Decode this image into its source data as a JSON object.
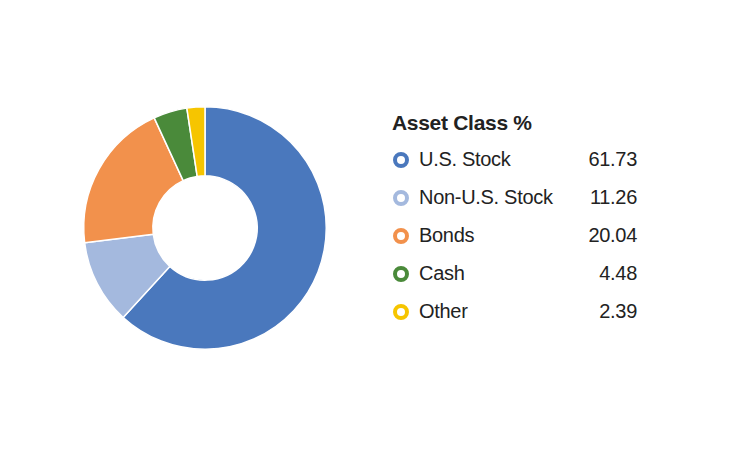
{
  "chart_data": {
    "type": "doughnut",
    "title": "Asset Class %",
    "categories": [
      "U.S. Stock",
      "Non-U.S. Stock",
      "Bonds",
      "Cash",
      "Other"
    ],
    "values": [
      61.73,
      11.26,
      20.04,
      4.48,
      2.39
    ],
    "colors": [
      "#4a78bd",
      "#a4b9de",
      "#f2914c",
      "#4a8a3a",
      "#f6c500"
    ],
    "legend": "right"
  }
}
